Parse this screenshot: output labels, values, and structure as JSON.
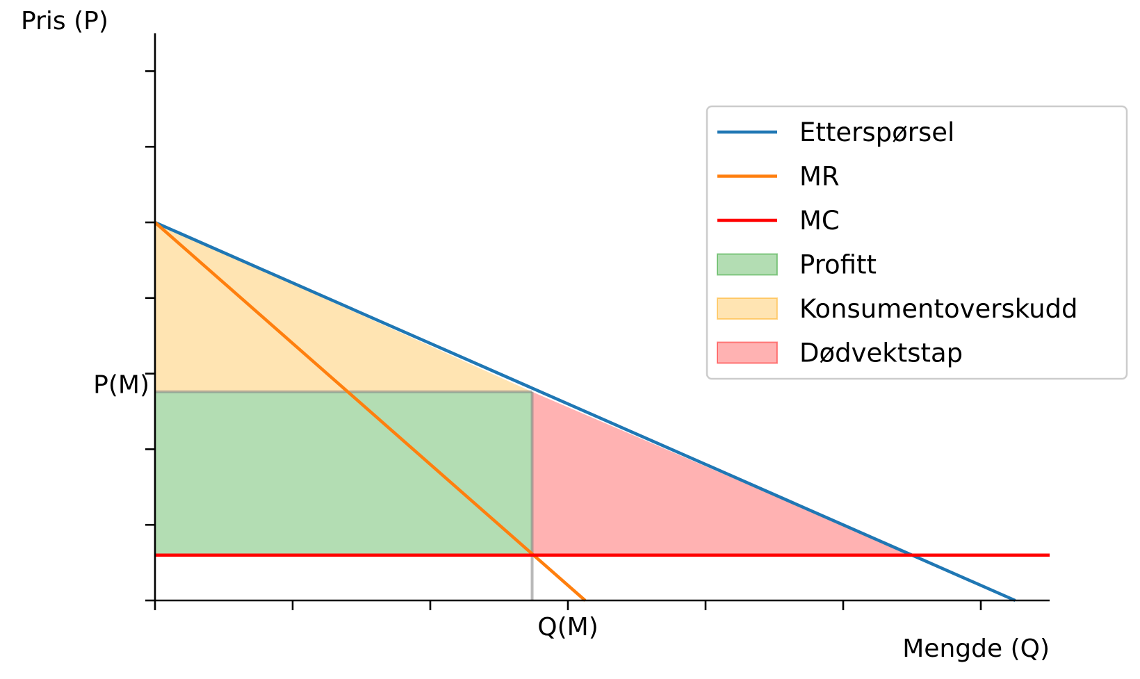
{
  "chart_data": {
    "type": "line",
    "xlabel": "Mengde (Q)",
    "ylabel": "Pris (P)",
    "xlim": [
      0,
      13
    ],
    "ylim": [
      0,
      15
    ],
    "grid": false,
    "legend_position": "top-right",
    "x_ticks": [
      {
        "value": 0,
        "label": ""
      },
      {
        "value": 2,
        "label": ""
      },
      {
        "value": 4,
        "label": ""
      },
      {
        "value": 6,
        "label": "Q(M)"
      },
      {
        "value": 8,
        "label": ""
      },
      {
        "value": 10,
        "label": ""
      },
      {
        "value": 12,
        "label": ""
      }
    ],
    "y_ticks": [
      {
        "value": 0,
        "label": ""
      },
      {
        "value": 2,
        "label": ""
      },
      {
        "value": 4,
        "label": ""
      },
      {
        "value": 6,
        "label": ""
      },
      {
        "value": 8,
        "label": ""
      },
      {
        "value": 10,
        "label": ""
      },
      {
        "value": 12,
        "label": ""
      },
      {
        "value": 14,
        "label": ""
      }
    ],
    "price_marker": {
      "value": 5.52,
      "label": "P(M)"
    },
    "quantity_marker": {
      "value": 5.48
    },
    "series": [
      {
        "name": "Etterspørsel",
        "color": "#1f77b4",
        "points": [
          [
            0,
            10
          ],
          [
            12.5,
            0
          ]
        ]
      },
      {
        "name": "MR",
        "color": "#ff7f0e",
        "points": [
          [
            0,
            10
          ],
          [
            6.25,
            0
          ]
        ]
      },
      {
        "name": "MC",
        "color": "#ff0000",
        "points": [
          [
            0,
            1.2
          ],
          [
            13,
            1.2
          ]
        ]
      }
    ],
    "areas": [
      {
        "name": "Profitt",
        "color": "#2ca02c",
        "opacity": 0.36,
        "polygon": [
          [
            0,
            5.52
          ],
          [
            5.48,
            5.52
          ],
          [
            5.48,
            1.2
          ],
          [
            0,
            1.2
          ]
        ]
      },
      {
        "name": "Konsumentoverskudd",
        "color": "#ffa500",
        "opacity": 0.3,
        "polygon": [
          [
            0,
            10
          ],
          [
            5.48,
            5.52
          ],
          [
            0,
            5.52
          ]
        ]
      },
      {
        "name": "Dødvektstap",
        "color": "#ff0000",
        "opacity": 0.3,
        "polygon": [
          [
            5.48,
            5.52
          ],
          [
            11.0,
            1.2
          ],
          [
            5.48,
            1.2
          ]
        ]
      }
    ]
  }
}
